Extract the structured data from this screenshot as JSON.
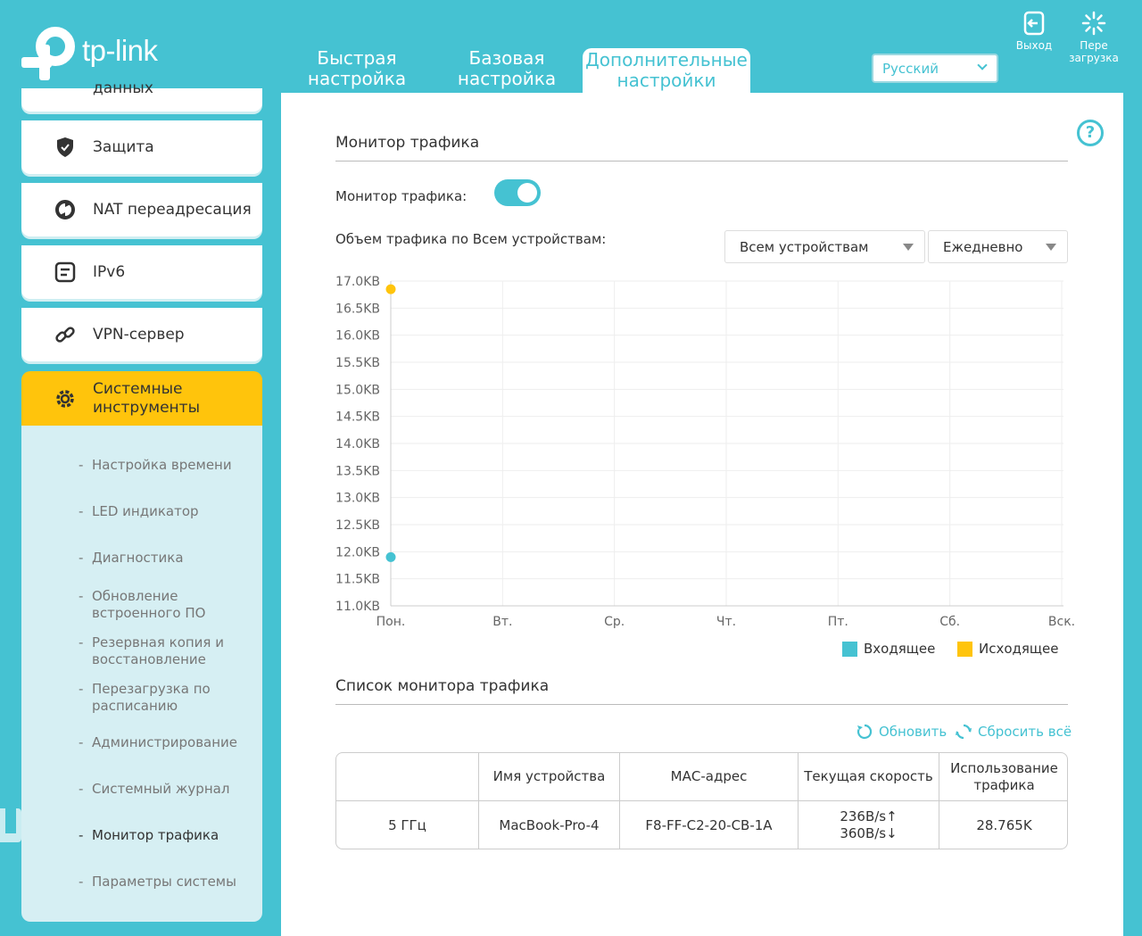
{
  "brand": {
    "name": "tp-link"
  },
  "nav": {
    "tabs": [
      {
        "label1": "Быстрая",
        "label2": "настройка"
      },
      {
        "label1": "Базовая",
        "label2": "настройка"
      },
      {
        "label1": "Дополнительные",
        "label2": "настройки"
      }
    ]
  },
  "language": {
    "selected": "Русский"
  },
  "header_buttons": {
    "logout": "Выход",
    "reboot1": "Пере",
    "reboot2": "загрузка"
  },
  "sidebar": {
    "items": [
      {
        "label": "данных",
        "icon": "data-icon"
      },
      {
        "label": "Защита",
        "icon": "shield-icon"
      },
      {
        "label": "NAT переадресация",
        "icon": "nat-icon"
      },
      {
        "label": "IPv6",
        "icon": "ipv6-icon"
      },
      {
        "label": "VPN-сервер",
        "icon": "link-icon"
      },
      {
        "label1": "Системные",
        "label2": "инструменты",
        "icon": "gear-icon"
      }
    ],
    "sub": [
      {
        "line1": "Настройка времени"
      },
      {
        "line1": "LED индикатор"
      },
      {
        "line1": "Диагностика"
      },
      {
        "line1": "Обновление",
        "line2": "встроенного ПО"
      },
      {
        "line1": "Резервная копия и",
        "line2": "восстановление"
      },
      {
        "line1": "Перезагрузка по",
        "line2": "расписанию"
      },
      {
        "line1": "Администрирование"
      },
      {
        "line1": "Системный журнал"
      },
      {
        "line1": "Монитор трафика"
      },
      {
        "line1": "Параметры системы"
      }
    ]
  },
  "main": {
    "title": "Монитор трафика",
    "toggle_label": "Монитор трафика:",
    "toggle_on": true,
    "volume_label": "Объем трафика по Всем устройствам:",
    "device_select": "Всем устройствам",
    "period_select": "Ежедневно",
    "list_title": "Список монитора трафика",
    "refresh": "Обновить",
    "reset_all": "Сбросить всё",
    "table": {
      "headers": [
        "",
        "Имя устройства",
        "МАС-адрес",
        "Текущая скорость",
        "Использование трафика"
      ],
      "rows": [
        {
          "band": "5 ГГц",
          "name": "MacBook-Pro-4",
          "mac": "F8-FF-C2-20-CB-1A",
          "speed_up": "236B/s↑",
          "speed_down": "360B/s↓",
          "usage": "28.765K"
        }
      ]
    }
  },
  "colors": {
    "accent": "#45c2d2",
    "active": "#ffc40c",
    "incoming": "#45c2d2",
    "outgoing": "#ffc40c"
  },
  "chart_data": {
    "type": "scatter",
    "x": [
      "Пон.",
      "Вт.",
      "Ср.",
      "Чт.",
      "Пт.",
      "Сб.",
      "Вск."
    ],
    "y_ticks": [
      "17.0KB",
      "16.5KB",
      "16.0KB",
      "15.5KB",
      "15.0KB",
      "14.5KB",
      "14.0KB",
      "13.5KB",
      "13.0KB",
      "12.5KB",
      "12.0KB",
      "11.5KB",
      "11.0KB"
    ],
    "ylim": [
      11.0,
      17.0
    ],
    "grid": true,
    "legend_position": "bottom-right",
    "series": [
      {
        "name": "Входящее",
        "color": "#45c2d2",
        "points": [
          {
            "x": "Пон.",
            "y": 11.9
          }
        ]
      },
      {
        "name": "Исходящее",
        "color": "#ffc40c",
        "points": [
          {
            "x": "Пон.",
            "y": 16.85
          }
        ]
      }
    ]
  }
}
